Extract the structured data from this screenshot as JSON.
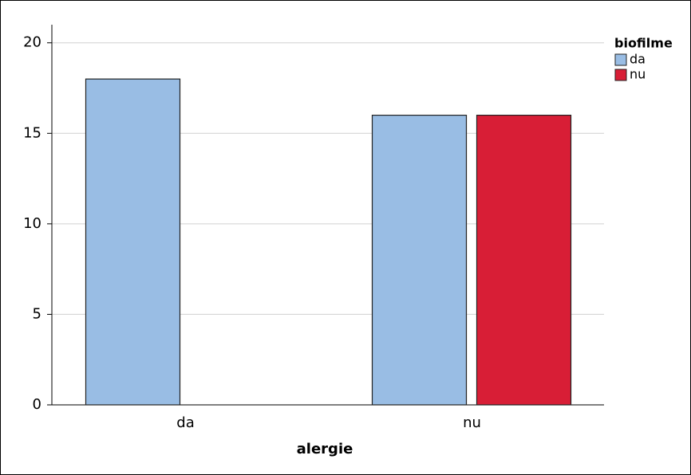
{
  "chart_data": {
    "type": "bar",
    "xlabel": "alergie",
    "categories": [
      "da",
      "nu"
    ],
    "series": [
      {
        "name": "da",
        "color": "#99bde4",
        "values": [
          18,
          16
        ]
      },
      {
        "name": "nu",
        "color": "#d81e36",
        "values": [
          null,
          16
        ]
      }
    ],
    "legend_title": "biofilme",
    "legend": "upper right",
    "ylim": [
      0,
      21
    ],
    "yticks": [
      0,
      5,
      10,
      15,
      20
    ],
    "grid": true
  }
}
